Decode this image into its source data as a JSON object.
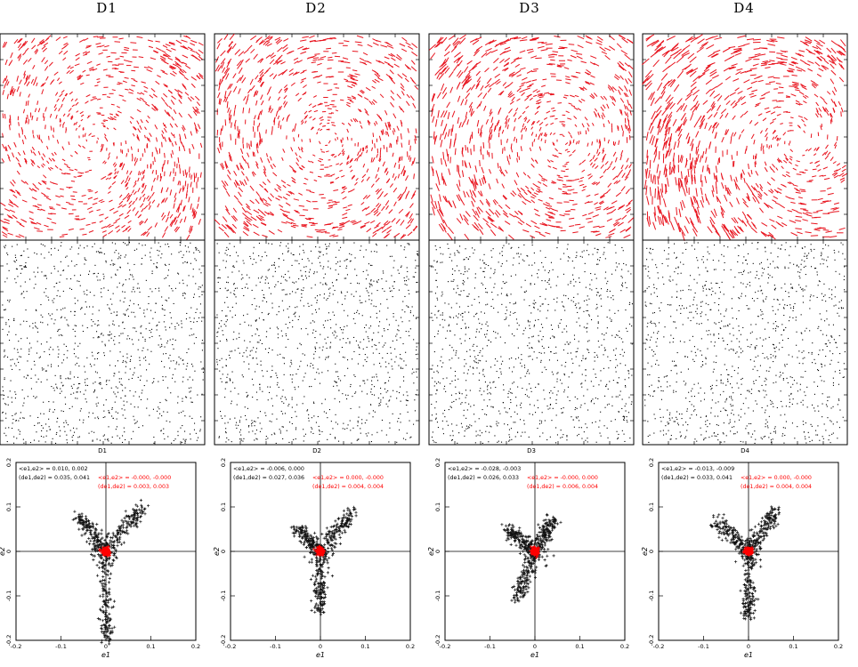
{
  "colors": {
    "whisker": "#e8141e",
    "star": "#000000",
    "point": "#111111",
    "mean": "#ff0000",
    "frame": "#000000"
  },
  "chart_data": [
    {
      "field": "D1",
      "title": "D1",
      "whisker_panel": {
        "type": "whisker-map",
        "color": "#e8141e"
      },
      "star_panel": {
        "type": "scatter",
        "label": "D1"
      },
      "ellipticity": {
        "type": "scatter",
        "xlabel": "e1",
        "ylabel": "e2",
        "xlim": [
          -0.2,
          0.2
        ],
        "ylim": [
          -0.2,
          0.2
        ],
        "xticks": [
          "-0.2",
          "-0.1",
          "0",
          "0.1",
          "0.2"
        ],
        "yticks": [
          "0.2",
          "0.1",
          "0",
          "-0.1",
          "-0.2"
        ],
        "before_mean": "<e1,e2> = 0.010, 0.002",
        "before_rms": "(de1,de2) = 0.035, 0.041",
        "after_mean": "<e1,e2> = -0.000, -0.000",
        "after_rms": "(de1,de2) = 0.003, 0.003",
        "arms": [
          [
            -0.06,
            0.08
          ],
          [
            0.08,
            0.1
          ],
          [
            0.0,
            -0.2
          ]
        ]
      }
    },
    {
      "field": "D2",
      "title": "D2",
      "whisker_panel": {
        "type": "whisker-map",
        "color": "#e8141e"
      },
      "star_panel": {
        "type": "scatter",
        "label": "D2"
      },
      "ellipticity": {
        "type": "scatter",
        "xlabel": "e1",
        "ylabel": "e2",
        "xlim": [
          -0.2,
          0.2
        ],
        "ylim": [
          -0.2,
          0.2
        ],
        "xticks": [
          "-0.2",
          "-0.1",
          "0",
          "0.1",
          "0.2"
        ],
        "yticks": [
          "0.2",
          "0.1",
          "0",
          "-0.1",
          "-0.2"
        ],
        "before_mean": "<e1,e2> = -0.006, 0.000",
        "before_rms": "(de1,de2) = 0.027, 0.036",
        "after_mean": "<e1,e2> = 0.000, -0.000",
        "after_rms": "(de1,de2) = 0.004, 0.004",
        "arms": [
          [
            -0.05,
            0.05
          ],
          [
            0.07,
            0.09
          ],
          [
            0.0,
            -0.13
          ]
        ]
      }
    },
    {
      "field": "D3",
      "title": "D3",
      "whisker_panel": {
        "type": "whisker-map",
        "color": "#e8141e"
      },
      "star_panel": {
        "type": "scatter",
        "label": "D3"
      },
      "ellipticity": {
        "type": "scatter",
        "xlabel": "e1",
        "ylabel": "e2",
        "xlim": [
          -0.2,
          0.2
        ],
        "ylim": [
          -0.2,
          0.2
        ],
        "xticks": [
          "-0.2",
          "-0.1",
          "0",
          "0.1",
          "0.2"
        ],
        "yticks": [
          "0.2",
          "0.1",
          "0",
          "-0.1",
          "-0.2"
        ],
        "before_mean": "<e1,e2> = -0.028, -0.003",
        "before_rms": "(de1,de2) = 0.026, 0.033",
        "after_mean": "<e1,e2> = -0.000, 0.000",
        "after_rms": "(de1,de2) = 0.006, 0.004",
        "arms": [
          [
            -0.06,
            0.05
          ],
          [
            0.04,
            0.07
          ],
          [
            -0.04,
            -0.11
          ]
        ]
      }
    },
    {
      "field": "D4",
      "title": "D4",
      "whisker_panel": {
        "type": "whisker-map",
        "color": "#e8141e"
      },
      "star_panel": {
        "type": "scatter",
        "label": "D4"
      },
      "ellipticity": {
        "type": "scatter",
        "xlabel": "e1",
        "ylabel": "e2",
        "xlim": [
          -0.2,
          0.2
        ],
        "ylim": [
          -0.2,
          0.2
        ],
        "xticks": [
          "-0.2",
          "-0.1",
          "0",
          "0.1",
          "0.2"
        ],
        "yticks": [
          "0.2",
          "0.1",
          "0",
          "-0.1",
          "-0.2"
        ],
        "before_mean": "<e1,e2> = -0.013, -0.009",
        "before_rms": "(de1,de2) = 0.033, 0.041",
        "after_mean": "<e1,e2> = 0.000, -0.000",
        "after_rms": "(de1,de2) = 0.004, 0.004",
        "arms": [
          [
            -0.07,
            0.07
          ],
          [
            0.06,
            0.09
          ],
          [
            0.0,
            -0.15
          ]
        ]
      }
    }
  ]
}
